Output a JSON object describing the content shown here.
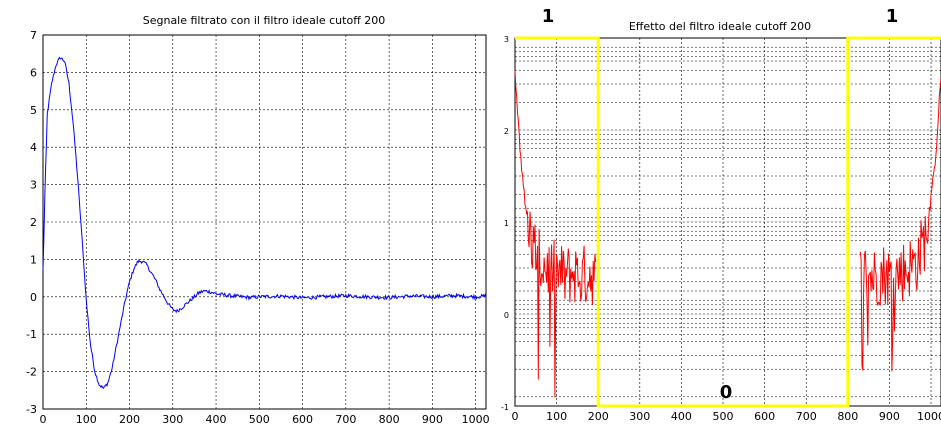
{
  "chart_data": [
    {
      "type": "line",
      "title": "Segnale filtrato con il filtro ideale cutoff 200",
      "xlim": [
        0,
        1024
      ],
      "ylim": [
        -3,
        7
      ],
      "xticks": [
        "0",
        "100",
        "200",
        "300",
        "400",
        "500",
        "600",
        "700",
        "800",
        "900",
        "1000"
      ],
      "yticks": [
        "-3",
        "-2",
        "-1",
        "0",
        "1",
        "2",
        "3",
        "4",
        "5",
        "6",
        "7"
      ],
      "grid": true,
      "series": [
        {
          "color": "#0000ff",
          "x": [
            0,
            5,
            10,
            20,
            30,
            40,
            50,
            60,
            70,
            80,
            90,
            100,
            110,
            120,
            130,
            140,
            150,
            160,
            170,
            180,
            190,
            200,
            210,
            220,
            230,
            240,
            250,
            260,
            270,
            280,
            290,
            300,
            310,
            320,
            330,
            340,
            350,
            360,
            370,
            380,
            390,
            400,
            420,
            440,
            460,
            480,
            500,
            550,
            600,
            650,
            700,
            750,
            800,
            850,
            900,
            950,
            1000,
            1024
          ],
          "y": [
            0.7,
            3.0,
            4.9,
            5.7,
            6.2,
            6.4,
            6.3,
            5.7,
            4.6,
            3.2,
            1.6,
            -0.1,
            -1.3,
            -2.0,
            -2.35,
            -2.45,
            -2.3,
            -1.9,
            -1.3,
            -0.7,
            -0.1,
            0.4,
            0.75,
            0.95,
            0.95,
            0.85,
            0.65,
            0.45,
            0.2,
            0.0,
            -0.2,
            -0.35,
            -0.38,
            -0.3,
            -0.2,
            -0.1,
            0.0,
            0.1,
            0.15,
            0.15,
            0.12,
            0.08,
            0.05,
            0.02,
            0.0,
            -0.02,
            0.0,
            0.02,
            -0.03,
            0.0,
            0.03,
            0.0,
            -0.02,
            0.02,
            0.0,
            0.03,
            0.0,
            0.02
          ],
          "noise_amplitude": 0.05
        }
      ]
    },
    {
      "type": "line",
      "title": "Effetto del filtro ideale cutoff 200",
      "xlim": [
        0,
        1024
      ],
      "ylim": [
        -1,
        3
      ],
      "xticks": [
        "0",
        "100",
        "200",
        "300",
        "400",
        "500",
        "600",
        "700",
        "800",
        "900",
        "1000"
      ],
      "yticks": [
        "-1",
        "0",
        "1",
        "2",
        "3"
      ],
      "grid": true,
      "series": [
        {
          "color": "#ff0000",
          "description_of_shape": "decaying spectrum with noise near 0-200 and 824-1024",
          "x": [
            0,
            5,
            10,
            20,
            30,
            40,
            60,
            80,
            100,
            120,
            140,
            160,
            180,
            195
          ],
          "y": [
            2.6,
            2.3,
            1.9,
            1.4,
            1.05,
            0.8,
            0.55,
            0.5,
            0.45,
            0.4,
            0.45,
            0.4,
            0.45,
            0.4
          ],
          "noise_amplitude": 0.35,
          "mirror": true
        },
        {
          "color": "#ffff00",
          "x": [
            0,
            200,
            200,
            800,
            800,
            1024
          ],
          "y": [
            3,
            3,
            -1,
            -1,
            3,
            3
          ]
        }
      ],
      "annotations": [
        "1",
        "0",
        "1"
      ]
    }
  ]
}
